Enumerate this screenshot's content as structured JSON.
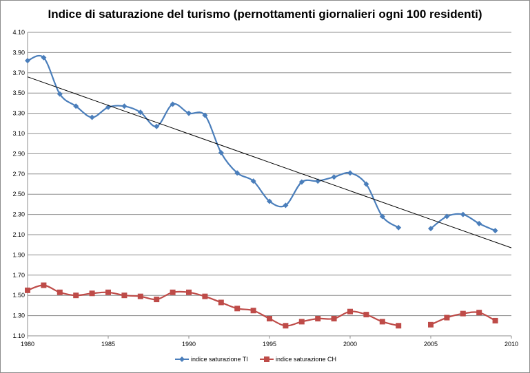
{
  "chart_data": {
    "type": "line",
    "title": "Indice di saturazione del turismo (pernottamenti giornalieri ogni 100 residenti)",
    "xlabel": "",
    "ylabel": "",
    "xlim": [
      1980,
      2010
    ],
    "ylim": [
      1.1,
      4.1
    ],
    "x_ticks": [
      1980,
      1985,
      1990,
      1995,
      2000,
      2005,
      2010
    ],
    "y_ticks": [
      "1.10",
      "1.30",
      "1.50",
      "1.70",
      "1.90",
      "2.10",
      "2.30",
      "2.50",
      "2.70",
      "2.90",
      "3.10",
      "3.30",
      "3.50",
      "3.70",
      "3.90",
      "4.10"
    ],
    "grid": "horizontal",
    "legend_position": "bottom",
    "series": [
      {
        "name": "indice saturazione TI",
        "color": "#4a7ebb",
        "marker": "diamond",
        "x": [
          1980,
          1981,
          1982,
          1983,
          1984,
          1985,
          1986,
          1987,
          1988,
          1989,
          1990,
          1991,
          1992,
          1993,
          1994,
          1995,
          1996,
          1997,
          1998,
          1999,
          2000,
          2001,
          2002,
          2003,
          2005,
          2006,
          2007,
          2008,
          2009
        ],
        "values": [
          3.82,
          3.85,
          3.49,
          3.37,
          3.26,
          3.36,
          3.37,
          3.31,
          3.17,
          3.39,
          3.3,
          3.28,
          2.91,
          2.71,
          2.63,
          2.43,
          2.39,
          2.62,
          2.63,
          2.67,
          2.71,
          2.6,
          2.28,
          2.17,
          2.16,
          2.28,
          2.3,
          2.21,
          2.14
        ]
      },
      {
        "name": "indice saturazione CH",
        "color": "#be4b48",
        "marker": "square",
        "x": [
          1980,
          1981,
          1982,
          1983,
          1984,
          1985,
          1986,
          1987,
          1988,
          1989,
          1990,
          1991,
          1992,
          1993,
          1994,
          1995,
          1996,
          1997,
          1998,
          1999,
          2000,
          2001,
          2002,
          2003,
          2005,
          2006,
          2007,
          2008,
          2009
        ],
        "values": [
          1.55,
          1.6,
          1.53,
          1.5,
          1.52,
          1.53,
          1.5,
          1.49,
          1.46,
          1.53,
          1.53,
          1.49,
          1.43,
          1.37,
          1.35,
          1.27,
          1.2,
          1.24,
          1.27,
          1.27,
          1.34,
          1.31,
          1.24,
          1.2,
          1.21,
          1.28,
          1.32,
          1.33,
          1.25
        ]
      }
    ],
    "trendline": {
      "series": "indice saturazione TI",
      "type": "linear",
      "color": "#000000",
      "x": [
        1980,
        2010
      ],
      "values": [
        3.66,
        1.97
      ]
    }
  }
}
